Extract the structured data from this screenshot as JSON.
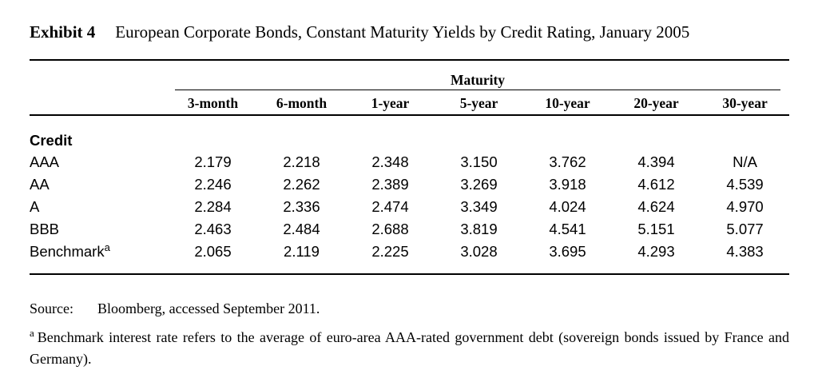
{
  "colors": {
    "background": "#ffffff",
    "text": "#000000",
    "rule": "#000000"
  },
  "header": {
    "exhibit_label": "Exhibit 4",
    "title": "European Corporate Bonds, Constant Maturity Yields by Credit Rating, January 2005"
  },
  "table": {
    "group_header": "Maturity",
    "columns": [
      "3-month",
      "6-month",
      "1-year",
      "5-year",
      "10-year",
      "20-year",
      "30-year"
    ],
    "credit_label": "Credit",
    "rows": [
      {
        "label": "AAA",
        "superscript": "",
        "values": [
          "2.179",
          "2.218",
          "2.348",
          "3.150",
          "3.762",
          "4.394",
          "N/A"
        ]
      },
      {
        "label": "AA",
        "superscript": "",
        "values": [
          "2.246",
          "2.262",
          "2.389",
          "3.269",
          "3.918",
          "4.612",
          "4.539"
        ]
      },
      {
        "label": "A",
        "superscript": "",
        "values": [
          "2.284",
          "2.336",
          "2.474",
          "3.349",
          "4.024",
          "4.624",
          "4.970"
        ]
      },
      {
        "label": "BBB",
        "superscript": "",
        "values": [
          "2.463",
          "2.484",
          "2.688",
          "3.819",
          "4.541",
          "5.151",
          "5.077"
        ]
      },
      {
        "label": "Benchmark",
        "superscript": "a",
        "values": [
          "2.065",
          "2.119",
          "2.225",
          "3.028",
          "3.695",
          "4.293",
          "4.383"
        ]
      }
    ]
  },
  "source": {
    "label": "Source:",
    "text": "Bloomberg, accessed September 2011."
  },
  "footnote": {
    "marker": "a",
    "text": "Benchmark interest rate refers to the average of euro-area AAA-rated government debt (sovereign bonds issued by France and Germany)."
  }
}
